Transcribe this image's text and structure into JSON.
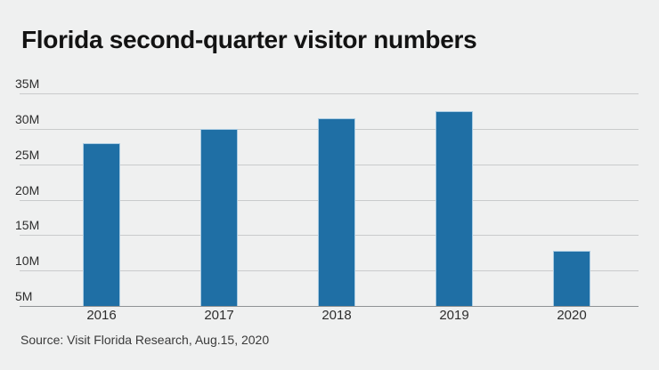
{
  "title": "Florida second-quarter visitor numbers",
  "source": "Source: Visit Florida Research, Aug.15, 2020",
  "colors": {
    "background": "#eff0f0",
    "bar": "#1f6fa5",
    "bar_edge": "#a9cbe2",
    "gridline": "#c9cbcc",
    "axis_line": "#8f9294",
    "title_text": "#131313",
    "tick_text": "#2d2d2d",
    "source_text": "#3a3a3a"
  },
  "chart_data": {
    "type": "bar",
    "title": "Florida second-quarter visitor numbers",
    "categories": [
      "2016",
      "2017",
      "2018",
      "2019",
      "2020"
    ],
    "values": [
      28,
      30,
      31.5,
      32.5,
      12.8
    ],
    "unit": "M",
    "xlabel": "",
    "ylabel": "",
    "ylim": [
      5,
      35
    ],
    "yticks": [
      35,
      30,
      25,
      20,
      15,
      10,
      5
    ],
    "ytick_labels": [
      "35M",
      "30M",
      "25M",
      "20M",
      "15M",
      "10M",
      "5M"
    ],
    "grid": "horizontal",
    "legend": "none",
    "source": "Source: Visit Florida Research, Aug.15, 2020"
  }
}
